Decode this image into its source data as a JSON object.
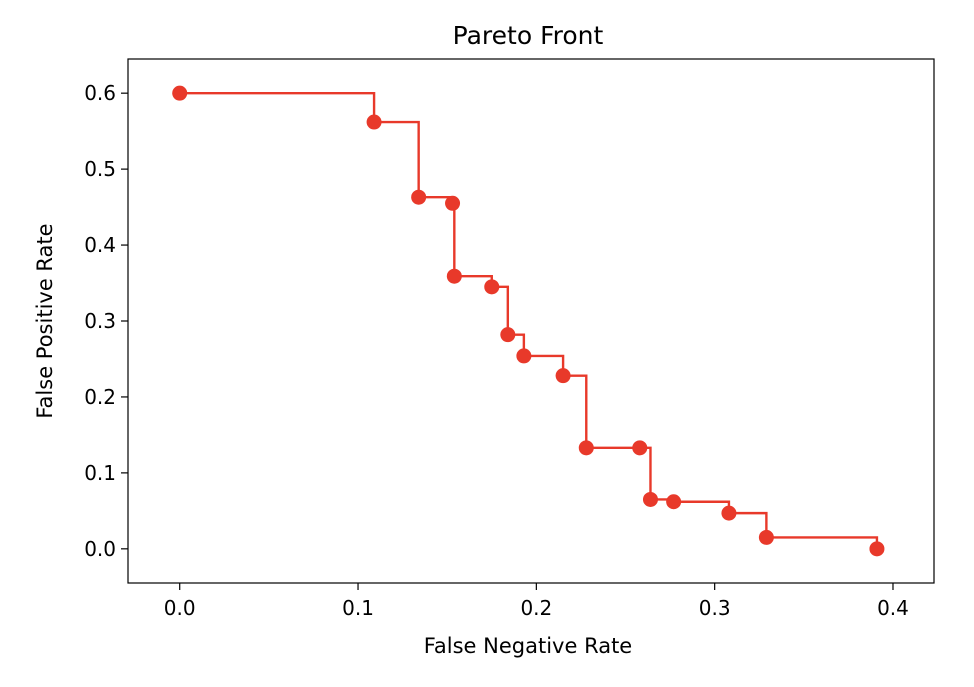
{
  "chart_data": {
    "type": "line",
    "title": "Pareto Front",
    "xlabel": "False Negative Rate",
    "ylabel": "False Positive Rate",
    "xlim": [
      -0.029,
      0.423
    ],
    "ylim": [
      -0.045,
      0.645
    ],
    "xticks": [
      "0.0",
      "0.1",
      "0.2",
      "0.3",
      "0.4"
    ],
    "yticks": [
      "0.0",
      "0.1",
      "0.2",
      "0.3",
      "0.4",
      "0.5",
      "0.6"
    ],
    "grid": false,
    "step": "post",
    "color": "#e8392a",
    "points": [
      {
        "x": 0.0,
        "y": 0.6
      },
      {
        "x": 0.109,
        "y": 0.562
      },
      {
        "x": 0.134,
        "y": 0.463
      },
      {
        "x": 0.153,
        "y": 0.455
      },
      {
        "x": 0.154,
        "y": 0.359
      },
      {
        "x": 0.175,
        "y": 0.345
      },
      {
        "x": 0.184,
        "y": 0.282
      },
      {
        "x": 0.193,
        "y": 0.254
      },
      {
        "x": 0.215,
        "y": 0.228
      },
      {
        "x": 0.228,
        "y": 0.133
      },
      {
        "x": 0.258,
        "y": 0.133
      },
      {
        "x": 0.264,
        "y": 0.065
      },
      {
        "x": 0.277,
        "y": 0.062
      },
      {
        "x": 0.308,
        "y": 0.047
      },
      {
        "x": 0.329,
        "y": 0.015
      },
      {
        "x": 0.391,
        "y": 0.0
      }
    ]
  }
}
